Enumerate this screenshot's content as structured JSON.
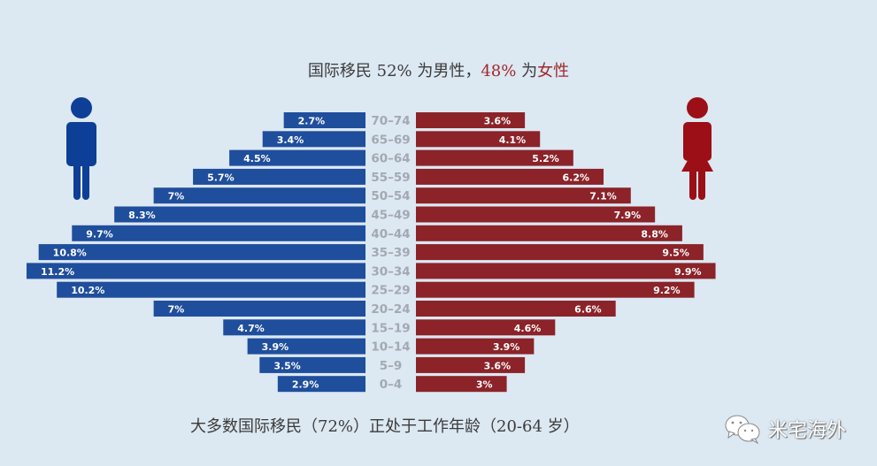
{
  "header": {
    "title_prefix": "国际移民 52% 为男性，",
    "title_female_pct": "48%",
    "title_mid": " 为",
    "title_female_word": "女性"
  },
  "footer": {
    "subtitle": "大多数国际移民（72%）正处于工作年龄（20-64 岁）",
    "watermark_text": "米宅海外",
    "watermark_icon": "wechat-icon"
  },
  "icons": {
    "male": "male-figure-icon",
    "female": "female-figure-icon"
  },
  "colors": {
    "male": "#1f4e9c",
    "female": "#8b2329",
    "background": "#dce8f2",
    "age_label": "#a3a9b0",
    "title_accent": "#a0282b"
  },
  "chart_data": {
    "type": "bar",
    "subtype": "population-pyramid",
    "title": "国际移民 52% 为男性，48% 为女性",
    "subtitle": "大多数国际移民（72%）正处于工作年龄（20-64 岁）",
    "categories": [
      "70–74",
      "65–69",
      "60–64",
      "55–59",
      "50–54",
      "45–49",
      "40–44",
      "35–39",
      "30–34",
      "25–29",
      "20–24",
      "15–19",
      "10–14",
      "5–9",
      "0–4"
    ],
    "series": [
      {
        "name": "男性",
        "side": "left",
        "values": [
          2.7,
          3.4,
          4.5,
          5.7,
          7,
          8.3,
          9.7,
          10.8,
          11.2,
          10.2,
          7,
          4.7,
          3.9,
          3.5,
          2.9
        ],
        "labels": [
          "2.7%",
          "3.4%",
          "4.5%",
          "5.7%",
          "7%",
          "8.3%",
          "9.7%",
          "10.8%",
          "11.2%",
          "10.2%",
          "7%",
          "4.7%",
          "3.9%",
          "3.5%",
          "2.9%"
        ]
      },
      {
        "name": "女性",
        "side": "right",
        "values": [
          3.6,
          4.1,
          5.2,
          6.2,
          7.1,
          7.9,
          8.8,
          9.5,
          9.9,
          9.2,
          6.6,
          4.6,
          3.9,
          3.6,
          3
        ],
        "labels": [
          "3.6%",
          "4.1%",
          "5.2%",
          "6.2%",
          "7.1%",
          "7.9%",
          "8.8%",
          "9.5%",
          "9.9%",
          "9.2%",
          "6.6%",
          "4.6%",
          "3.9%",
          "3.6%",
          "3%"
        ]
      }
    ],
    "unit": "%",
    "xlim": [
      0,
      11.2
    ],
    "grid": false,
    "legend": "none"
  }
}
